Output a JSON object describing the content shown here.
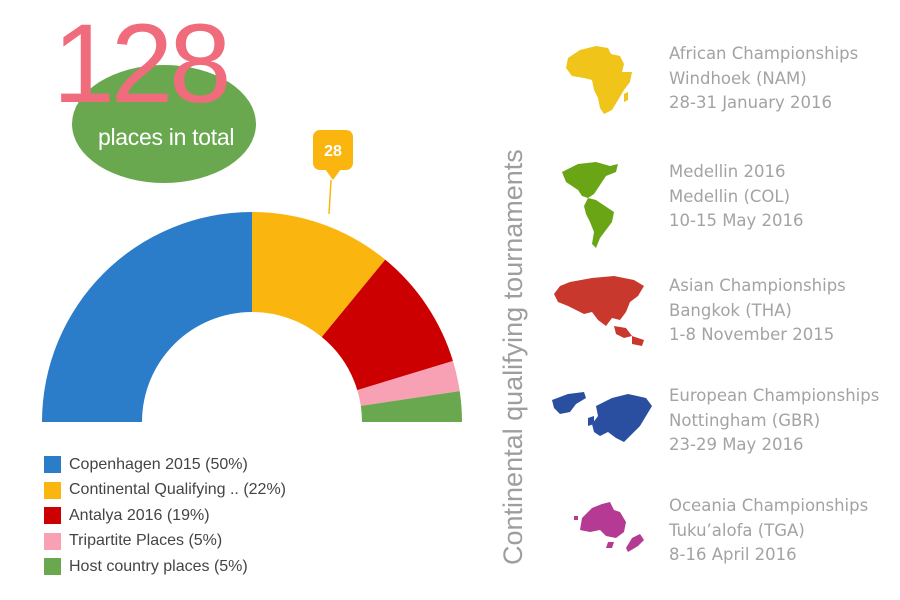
{
  "total": {
    "number": "128",
    "caption": "places in total"
  },
  "callout": "28",
  "chart_data": {
    "type": "pie",
    "variant": "half-donut",
    "title": "",
    "categories": [
      "Copenhagen 2015",
      "Continental Qualifying",
      "Antalya 2016",
      "Tripartite Places",
      "Host country places"
    ],
    "values": [
      64,
      28,
      24,
      6,
      6
    ],
    "percentages": [
      50,
      22,
      19,
      5,
      5
    ],
    "colors": [
      "#2b7cc9",
      "#fab60f",
      "#cc0000",
      "#f8a0b4",
      "#6aa84f"
    ],
    "callout": {
      "category": "Continental Qualifying",
      "label": "28"
    },
    "legend_position": "bottom-left"
  },
  "legend": [
    {
      "label": "Copenhagen 2015 (50%)",
      "color": "#2b7cc9"
    },
    {
      "label": "Continental Qualifying .. (22%)",
      "color": "#fab60f"
    },
    {
      "label": "Antalya 2016 (19%)",
      "color": "#cc0000"
    },
    {
      "label": "Tripartite Places (5%)",
      "color": "#f8a0b4"
    },
    {
      "label": "Host country places (5%)",
      "color": "#6aa84f"
    }
  ],
  "side_title": "Continental qualifying tournaments",
  "tournaments": [
    {
      "name": "African Championships",
      "place": "Windhoek (NAM)",
      "dates": "28-31 January 2016",
      "icon": "africa-map-icon",
      "color": "#f0c419"
    },
    {
      "name": "Medellin 2016",
      "place": "Medellin (COL)",
      "dates": "10-15 May 2016",
      "icon": "americas-map-icon",
      "color": "#6aa516"
    },
    {
      "name": "Asian Championships",
      "place": "Bangkok (THA)",
      "dates": "1-8 November 2015",
      "icon": "asia-map-icon",
      "color": "#c8382c"
    },
    {
      "name": "European Championships",
      "place": "Nottingham (GBR)",
      "dates": "23-29 May 2016",
      "icon": "europe-map-icon",
      "color": "#2a4ea0"
    },
    {
      "name": "Oceania Championships",
      "place": "Tuku’alofa (TGA)",
      "dates": "8-16 April 2016",
      "icon": "oceania-map-icon",
      "color": "#b43a94"
    }
  ]
}
